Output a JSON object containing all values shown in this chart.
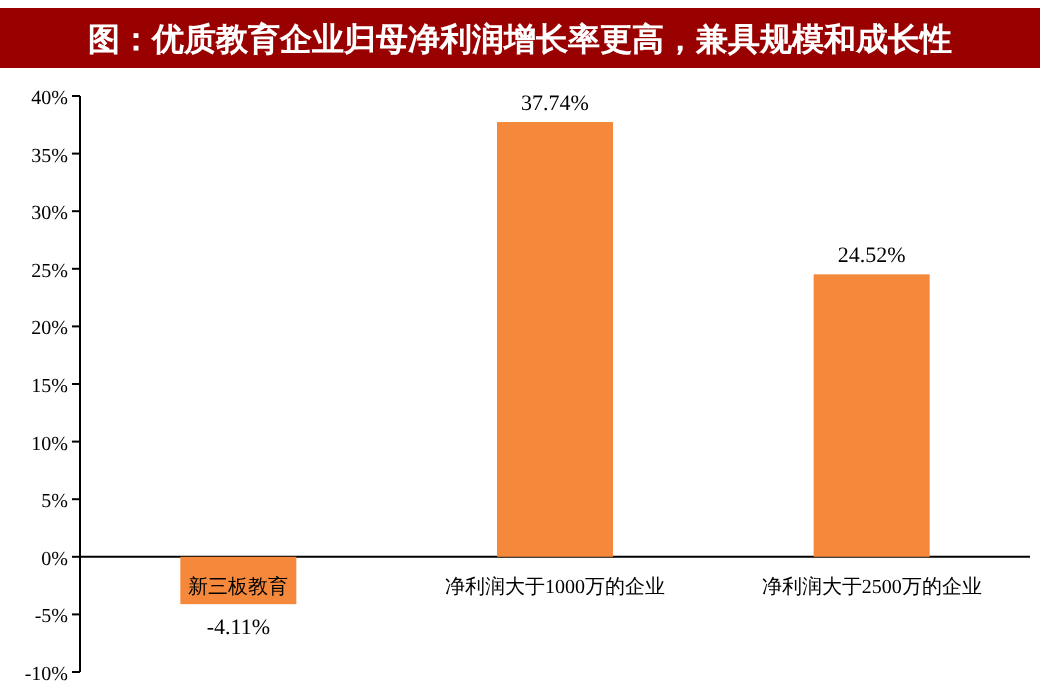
{
  "chart_data": {
    "type": "bar",
    "title": "图：优质教育企业归母净利润增长率更高，兼具规模和成长性",
    "categories": [
      "新三板教育",
      "净利润大于1000万的企业",
      "净利润大于2500万的企业"
    ],
    "values": [
      -4.11,
      37.74,
      24.52
    ],
    "value_labels": [
      "-4.11%",
      "37.74%",
      "24.52%"
    ],
    "color": "#f5883a",
    "ylim": [
      -10,
      40
    ],
    "yticks": [
      {
        "value": -10,
        "label": "-10%"
      },
      {
        "value": -5,
        "label": "-5%"
      },
      {
        "value": 0,
        "label": "0%"
      },
      {
        "value": 5,
        "label": "5%"
      },
      {
        "value": 10,
        "label": "10%"
      },
      {
        "value": 15,
        "label": "15%"
      },
      {
        "value": 20,
        "label": "20%"
      },
      {
        "value": 25,
        "label": "25%"
      },
      {
        "value": 30,
        "label": "30%"
      },
      {
        "value": 35,
        "label": "35%"
      },
      {
        "value": 40,
        "label": "40%"
      }
    ],
    "grid": false
  }
}
